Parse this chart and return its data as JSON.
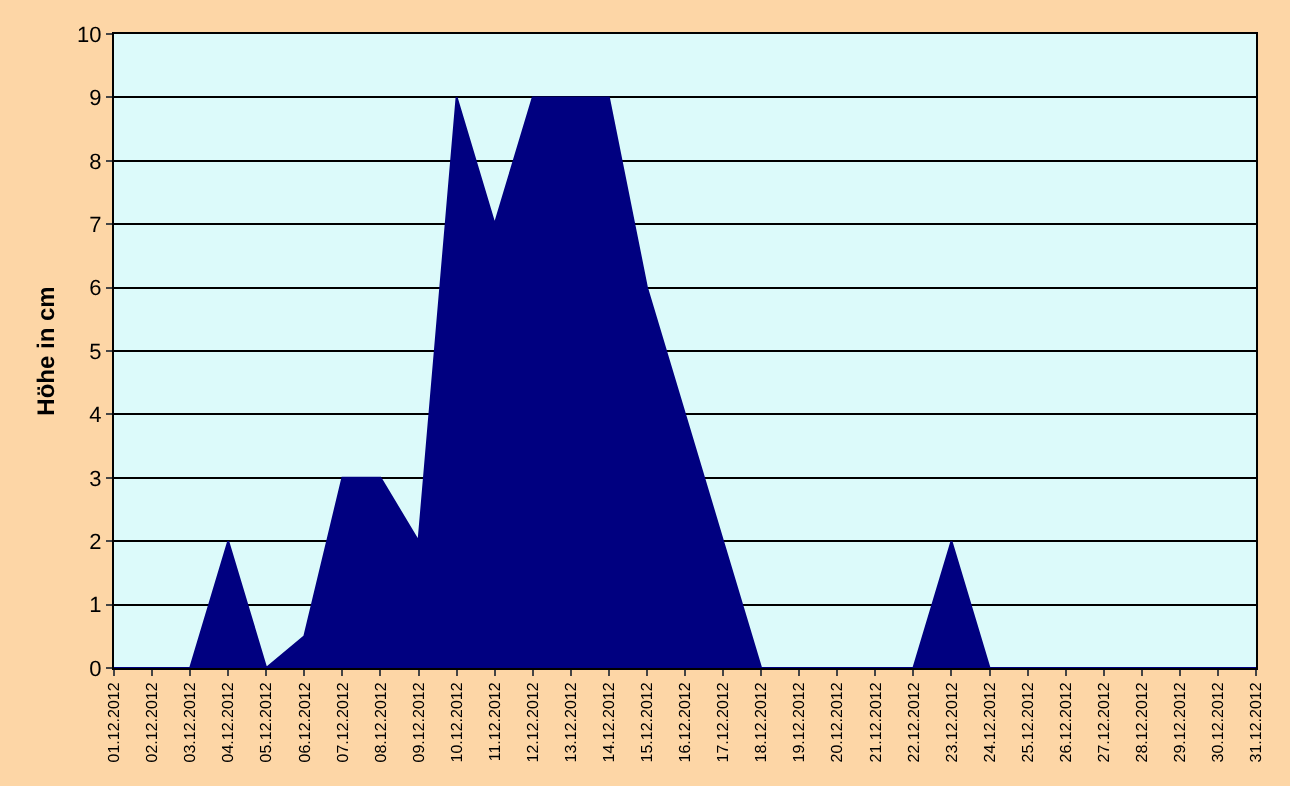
{
  "chart_data": {
    "type": "area",
    "ylabel": "Höhe in cm",
    "categories": [
      "01.12.2012",
      "02.12.2012",
      "03.12.2012",
      "04.12.2012",
      "05.12.2012",
      "06.12.2012",
      "07.12.2012",
      "08.12.2012",
      "09.12.2012",
      "10.12.2012",
      "11.12.2012",
      "12.12.2012",
      "13.12.2012",
      "14.12.2012",
      "15.12.2012",
      "16.12.2012",
      "17.12.2012",
      "18.12.2012",
      "19.12.2012",
      "20.12.2012",
      "21.12.2012",
      "22.12.2012",
      "23.12.2012",
      "24.12.2012",
      "25.12.2012",
      "26.12.2012",
      "27.12.2012",
      "28.12.2012",
      "29.12.2012",
      "30.12.2012",
      "31.12.2012"
    ],
    "series": [
      {
        "color": "#000080",
        "values": [
          0,
          0,
          0,
          2,
          0,
          0.5,
          3,
          3,
          2,
          9,
          7,
          9,
          9,
          9,
          6,
          4,
          2,
          0,
          0,
          0,
          0,
          0,
          2,
          0,
          0,
          0,
          0,
          0,
          0,
          0,
          0
        ]
      }
    ],
    "ylim": [
      0,
      10
    ],
    "yticks": [
      0,
      1,
      2,
      3,
      4,
      5,
      6,
      7,
      8,
      9,
      10
    ],
    "grid": "y"
  }
}
